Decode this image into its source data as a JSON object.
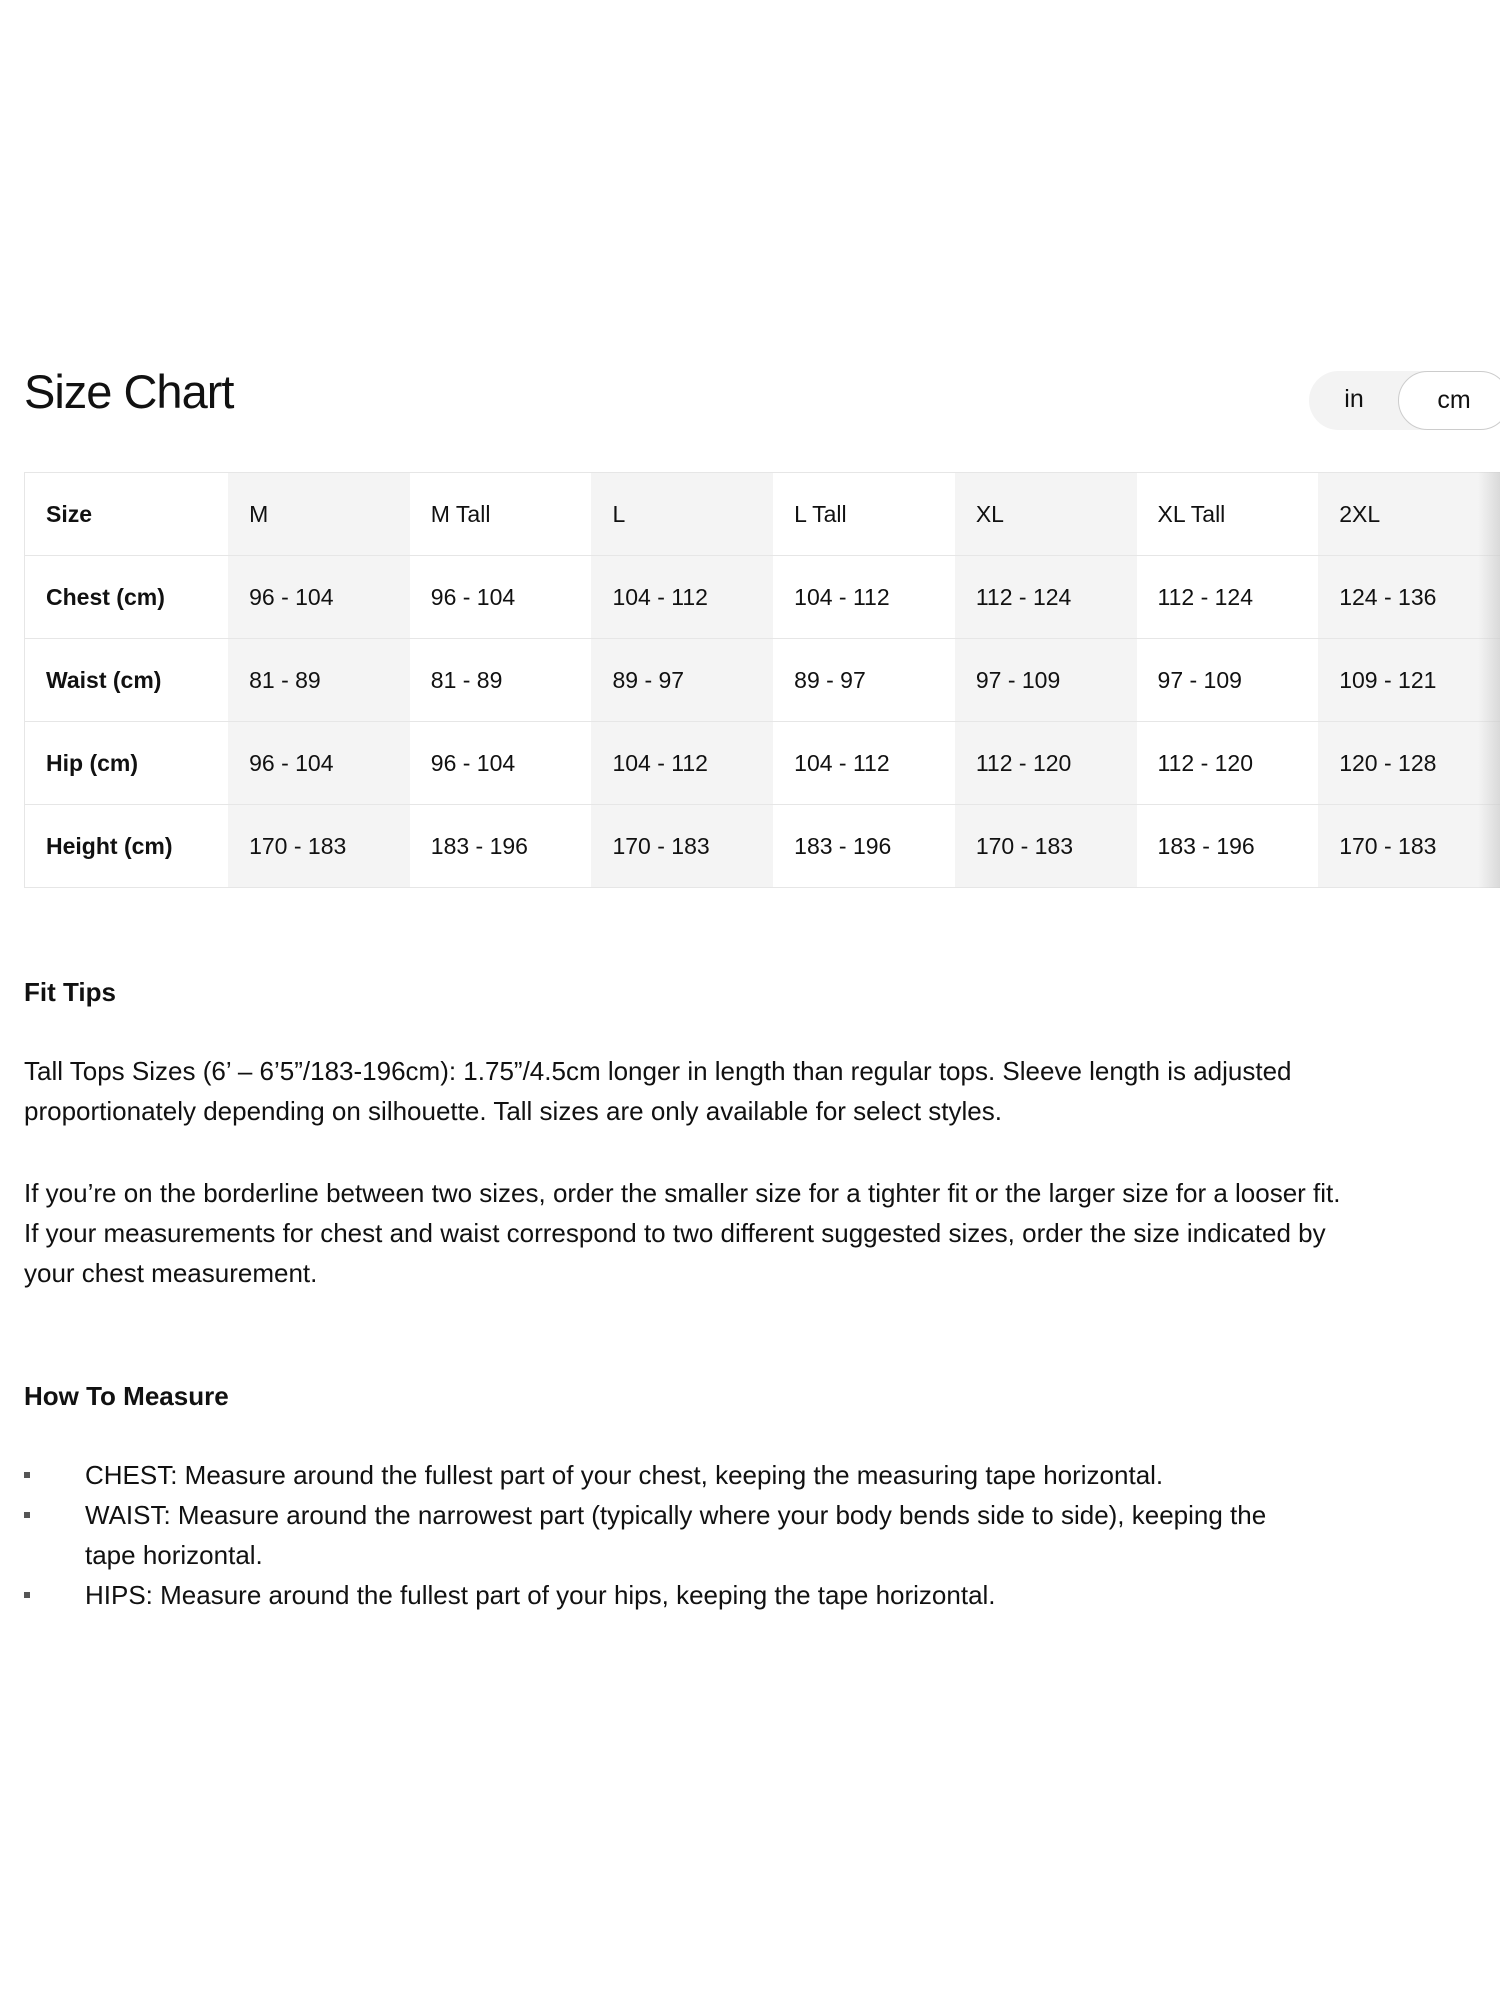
{
  "header": {
    "title": "Size Chart"
  },
  "unit_toggle": {
    "options": [
      "in",
      "cm"
    ],
    "selected": "cm"
  },
  "table": {
    "headers": [
      "Size",
      "M",
      "M Tall",
      "L",
      "L Tall",
      "XL",
      "XL Tall",
      "2XL"
    ],
    "rows": [
      {
        "label": "Chest (cm)",
        "values": [
          "96 - 104",
          "96 - 104",
          "104 - 112",
          "104 - 112",
          "112 - 124",
          "112 - 124",
          "124 - 136"
        ]
      },
      {
        "label": "Waist (cm)",
        "values": [
          "81 - 89",
          "81 - 89",
          "89 - 97",
          "89 - 97",
          "97 - 109",
          "97 - 109",
          "109 - 121"
        ]
      },
      {
        "label": "Hip (cm)",
        "values": [
          "96 - 104",
          "96 - 104",
          "104 - 112",
          "104 - 112",
          "112 - 120",
          "112 - 120",
          "120 - 128"
        ]
      },
      {
        "label": "Height (cm)",
        "values": [
          "170 - 183",
          "183 - 196",
          "170 - 183",
          "183 - 196",
          "170 - 183",
          "183 - 196",
          "170 - 183"
        ]
      }
    ]
  },
  "fit_tips": {
    "heading": "Fit Tips",
    "paragraphs": [
      "Tall Tops Sizes (6’ – 6’5”/183-196cm): 1.75”/4.5cm longer in length than regular tops. Sleeve length is adjusted proportionately depending on silhouette. Tall sizes are only available for select styles.",
      "If you’re on the borderline between two sizes, order the smaller size for a tighter fit or the larger size for a looser fit. If your measurements for chest and waist correspond to two different suggested sizes, order the size indicated by your chest measurement."
    ]
  },
  "how_to_measure": {
    "heading": "How To Measure",
    "items": [
      "CHEST: Measure around the fullest part of your chest, keeping the measuring tape horizontal.",
      "WAIST: Measure around the narrowest part (typically where your body bends side to side), keeping the tape horizontal.",
      "HIPS: Measure around the fullest part of your hips, keeping the tape horizontal."
    ]
  }
}
